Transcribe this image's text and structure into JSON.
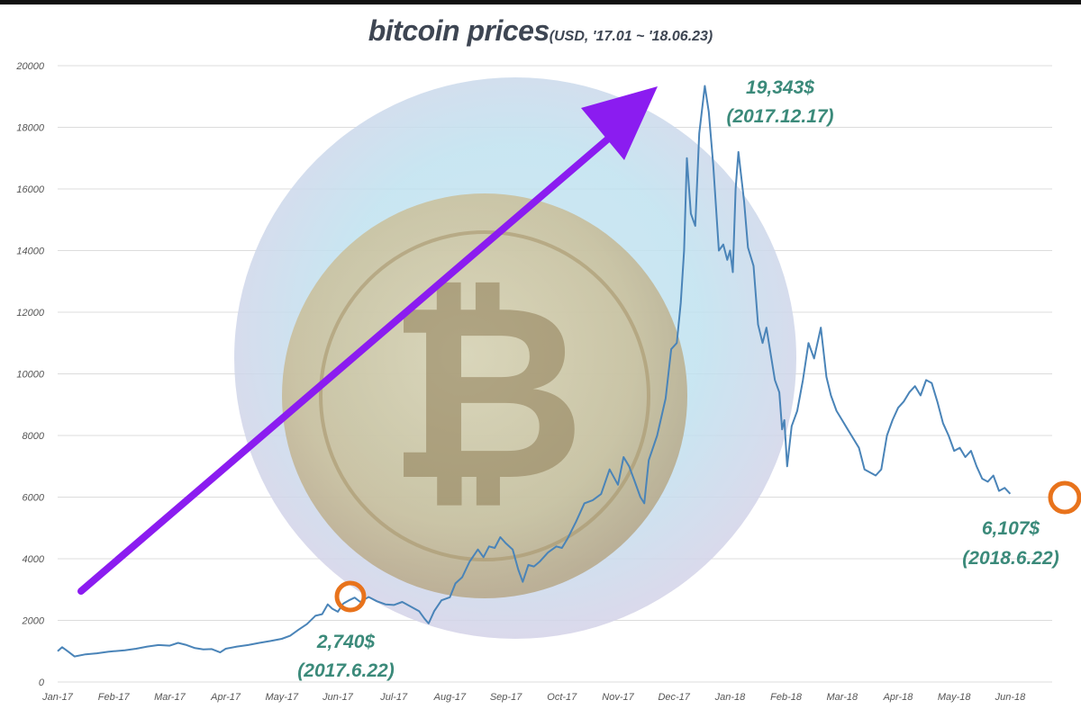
{
  "title": {
    "main": "bitcoin prices",
    "sub": "(USD, '17.01 ~ '18.06.23)"
  },
  "colors": {
    "line": "#4a84b8",
    "annotation": "#3b8a7a",
    "marker": "#e8731c",
    "arrow": "#8b1cf0",
    "grid": "#dcdcdc"
  },
  "annotations": [
    {
      "value": "19,343$",
      "date": "(2017.12.17)"
    },
    {
      "value": "6,107$",
      "date": "(2018.6.22)"
    },
    {
      "value": "2,740$",
      "date": "(2017.6.22)"
    }
  ],
  "chart_data": {
    "type": "line",
    "title": "bitcoin prices",
    "subtitle": "(USD, '17.01 ~ '18.06.23)",
    "xlabel": "",
    "ylabel": "",
    "ylim": [
      0,
      20000
    ],
    "yticks": [
      0,
      2000,
      4000,
      6000,
      8000,
      10000,
      12000,
      14000,
      16000,
      18000,
      20000
    ],
    "xticks": [
      "Jan-17",
      "Feb-17",
      "Mar-17",
      "Apr-17",
      "May-17",
      "Jun-17",
      "Jul-17",
      "Aug-17",
      "Sep-17",
      "Oct-17",
      "Nov-17",
      "Dec-17",
      "Jan-18",
      "Feb-18",
      "Mar-18",
      "Apr-18",
      "May-18",
      "Jun-18"
    ],
    "grid": true,
    "legend": "none",
    "series": [
      {
        "x_unit": "months since Jan-17",
        "points": [
          [
            0.0,
            1000
          ],
          [
            0.08,
            1130
          ],
          [
            0.18,
            1000
          ],
          [
            0.3,
            830
          ],
          [
            0.5,
            900
          ],
          [
            0.7,
            930
          ],
          [
            0.9,
            980
          ],
          [
            1.0,
            1000
          ],
          [
            1.2,
            1030
          ],
          [
            1.4,
            1080
          ],
          [
            1.6,
            1150
          ],
          [
            1.8,
            1200
          ],
          [
            2.0,
            1180
          ],
          [
            2.15,
            1270
          ],
          [
            2.3,
            1200
          ],
          [
            2.45,
            1100
          ],
          [
            2.6,
            1060
          ],
          [
            2.75,
            1070
          ],
          [
            2.9,
            960
          ],
          [
            3.0,
            1080
          ],
          [
            3.2,
            1150
          ],
          [
            3.4,
            1200
          ],
          [
            3.6,
            1270
          ],
          [
            3.8,
            1330
          ],
          [
            4.0,
            1400
          ],
          [
            4.15,
            1500
          ],
          [
            4.3,
            1700
          ],
          [
            4.45,
            1880
          ],
          [
            4.6,
            2150
          ],
          [
            4.72,
            2200
          ],
          [
            4.82,
            2520
          ],
          [
            4.9,
            2380
          ],
          [
            5.0,
            2280
          ],
          [
            5.1,
            2550
          ],
          [
            5.2,
            2650
          ],
          [
            5.3,
            2740
          ],
          [
            5.4,
            2600
          ],
          [
            5.55,
            2760
          ],
          [
            5.7,
            2620
          ],
          [
            5.85,
            2520
          ],
          [
            6.0,
            2500
          ],
          [
            6.15,
            2600
          ],
          [
            6.3,
            2450
          ],
          [
            6.45,
            2300
          ],
          [
            6.55,
            2050
          ],
          [
            6.62,
            1900
          ],
          [
            6.72,
            2300
          ],
          [
            6.85,
            2650
          ],
          [
            7.0,
            2750
          ],
          [
            7.1,
            3200
          ],
          [
            7.22,
            3400
          ],
          [
            7.35,
            3900
          ],
          [
            7.5,
            4300
          ],
          [
            7.6,
            4050
          ],
          [
            7.7,
            4400
          ],
          [
            7.8,
            4350
          ],
          [
            7.9,
            4700
          ],
          [
            8.0,
            4500
          ],
          [
            8.12,
            4300
          ],
          [
            8.22,
            3650
          ],
          [
            8.3,
            3250
          ],
          [
            8.4,
            3800
          ],
          [
            8.5,
            3750
          ],
          [
            8.6,
            3900
          ],
          [
            8.75,
            4200
          ],
          [
            8.9,
            4400
          ],
          [
            9.0,
            4350
          ],
          [
            9.1,
            4650
          ],
          [
            9.25,
            5200
          ],
          [
            9.4,
            5800
          ],
          [
            9.55,
            5900
          ],
          [
            9.7,
            6100
          ],
          [
            9.85,
            6900
          ],
          [
            10.0,
            6400
          ],
          [
            10.1,
            7300
          ],
          [
            10.2,
            7000
          ],
          [
            10.3,
            6500
          ],
          [
            10.4,
            6000
          ],
          [
            10.47,
            5800
          ],
          [
            10.55,
            7200
          ],
          [
            10.7,
            8000
          ],
          [
            10.85,
            9200
          ],
          [
            10.95,
            10800
          ],
          [
            11.05,
            11000
          ],
          [
            11.12,
            12300
          ],
          [
            11.18,
            14000
          ],
          [
            11.23,
            17000
          ],
          [
            11.3,
            15200
          ],
          [
            11.38,
            14800
          ],
          [
            11.45,
            17800
          ],
          [
            11.55,
            19343
          ],
          [
            11.62,
            18500
          ],
          [
            11.7,
            16800
          ],
          [
            11.8,
            14000
          ],
          [
            11.88,
            14200
          ],
          [
            11.95,
            13700
          ],
          [
            12.0,
            14000
          ],
          [
            12.05,
            13300
          ],
          [
            12.1,
            16000
          ],
          [
            12.15,
            17200
          ],
          [
            12.25,
            15600
          ],
          [
            12.32,
            14100
          ],
          [
            12.42,
            13500
          ],
          [
            12.5,
            11600
          ],
          [
            12.58,
            11000
          ],
          [
            12.65,
            11500
          ],
          [
            12.72,
            10700
          ],
          [
            12.8,
            9800
          ],
          [
            12.88,
            9400
          ],
          [
            12.93,
            8200
          ],
          [
            12.97,
            8500
          ],
          [
            13.02,
            7000
          ],
          [
            13.1,
            8300
          ],
          [
            13.2,
            8800
          ],
          [
            13.3,
            9800
          ],
          [
            13.4,
            11000
          ],
          [
            13.5,
            10500
          ],
          [
            13.62,
            11500
          ],
          [
            13.72,
            9900
          ],
          [
            13.8,
            9300
          ],
          [
            13.9,
            8800
          ],
          [
            14.0,
            8500
          ],
          [
            14.1,
            8200
          ],
          [
            14.2,
            7900
          ],
          [
            14.3,
            7600
          ],
          [
            14.4,
            6900
          ],
          [
            14.5,
            6800
          ],
          [
            14.6,
            6700
          ],
          [
            14.7,
            6900
          ],
          [
            14.8,
            8000
          ],
          [
            14.9,
            8500
          ],
          [
            15.0,
            8900
          ],
          [
            15.1,
            9100
          ],
          [
            15.2,
            9400
          ],
          [
            15.3,
            9600
          ],
          [
            15.4,
            9300
          ],
          [
            15.5,
            9800
          ],
          [
            15.6,
            9700
          ],
          [
            15.7,
            9100
          ],
          [
            15.8,
            8400
          ],
          [
            15.9,
            8000
          ],
          [
            16.0,
            7500
          ],
          [
            16.1,
            7600
          ],
          [
            16.2,
            7300
          ],
          [
            16.3,
            7500
          ],
          [
            16.4,
            7000
          ],
          [
            16.5,
            6600
          ],
          [
            16.6,
            6500
          ],
          [
            16.7,
            6700
          ],
          [
            16.8,
            6200
          ],
          [
            16.9,
            6300
          ],
          [
            17.0,
            6107
          ]
        ]
      }
    ]
  }
}
